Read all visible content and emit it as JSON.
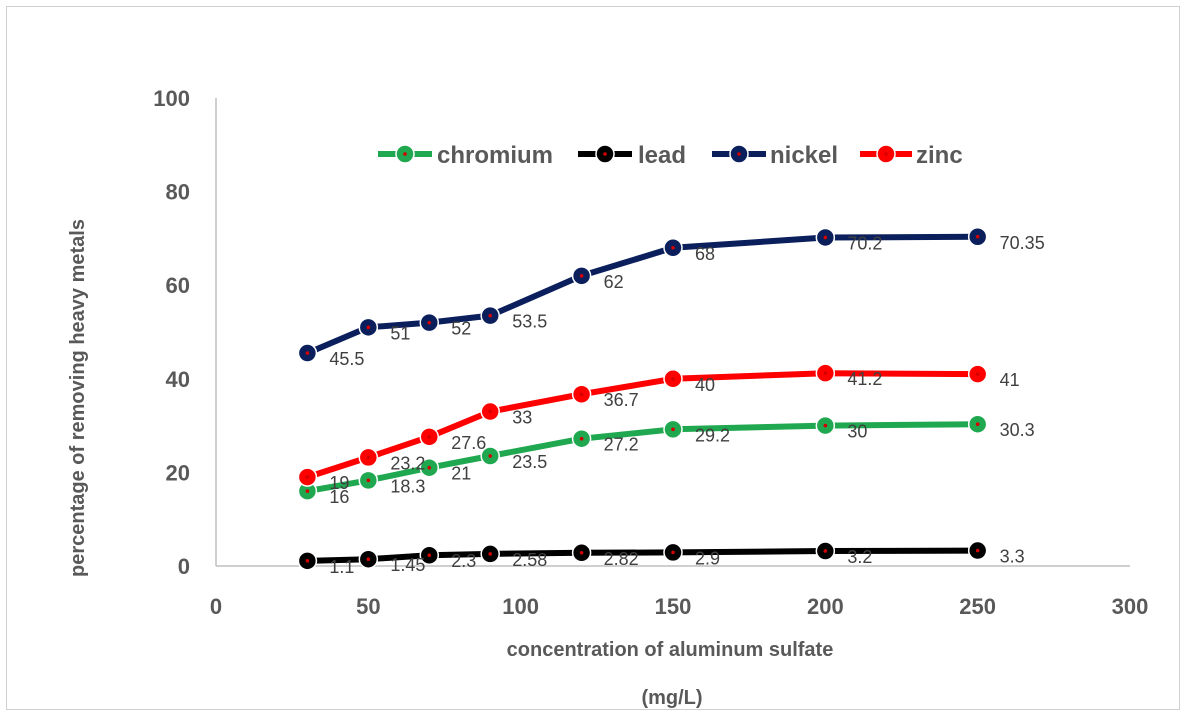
{
  "chart_data": {
    "type": "line",
    "xlabel": "concentration of aluminum sulfate",
    "xlabel_unit": "(mg/L)",
    "ylabel": "percentage of removing heavy metals",
    "xlim": [
      0,
      300
    ],
    "ylim": [
      0,
      100
    ],
    "x_ticks": [
      "0",
      "50",
      "100",
      "150",
      "200",
      "250",
      "300"
    ],
    "y_ticks": [
      "0",
      "20",
      "40",
      "60",
      "80",
      "100"
    ],
    "x": [
      30,
      50,
      70,
      90,
      120,
      150,
      200,
      250
    ],
    "grid": false,
    "legend_position": "top",
    "series": [
      {
        "name": "chromium",
        "color": "#1fa84f",
        "values": [
          16,
          18.3,
          21,
          23.5,
          27.2,
          29.2,
          30,
          30.3
        ],
        "labels": [
          "16",
          "18.3",
          "21",
          "23.5",
          "27.2",
          "29.2",
          "30",
          "30.3"
        ]
      },
      {
        "name": "lead",
        "color": "#000000",
        "values": [
          1.1,
          1.45,
          2.3,
          2.58,
          2.82,
          2.9,
          3.2,
          3.3
        ],
        "labels": [
          "1.1",
          "1.45",
          "2.3",
          "2.58",
          "2.82",
          "2.9",
          "3.2",
          "3.3"
        ]
      },
      {
        "name": "nickel",
        "color": "#0a1f5c",
        "values": [
          45.5,
          51,
          52,
          53.5,
          62,
          68,
          70.2,
          70.35
        ],
        "labels": [
          "45.5",
          "51",
          "52",
          "53.5",
          "62",
          "68",
          "70.2",
          "70.35"
        ]
      },
      {
        "name": "zinc",
        "color": "#ff0000",
        "values": [
          19,
          23.2,
          27.6,
          33,
          36.7,
          40,
          41.2,
          41
        ],
        "labels": [
          "19",
          "23.2",
          "27.6",
          "33",
          "36.7",
          "40",
          "41.2",
          "41"
        ]
      }
    ],
    "marker_dot_color": "#d40000"
  }
}
